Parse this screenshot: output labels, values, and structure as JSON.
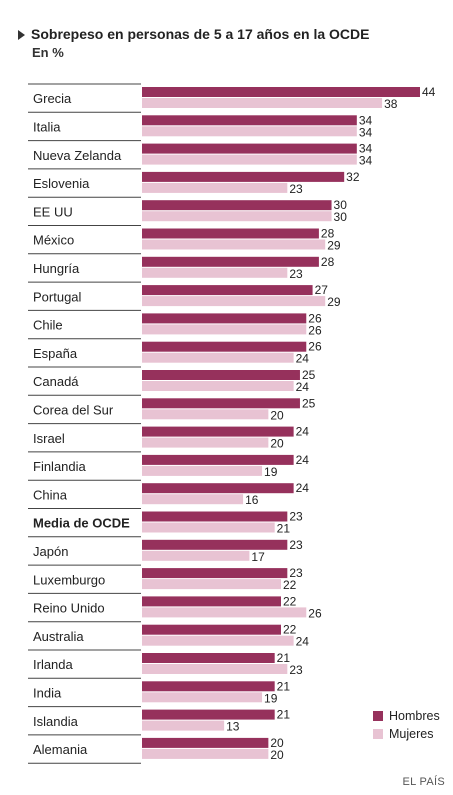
{
  "header": {
    "title": "Sobrepeso en personas de 5 a 17 años en la OCDE",
    "subtitle": "En %"
  },
  "source": "EL PAÍS",
  "colors": {
    "hombres": "#96315c",
    "mujeres": "#e8c3d3",
    "divider": "#444444"
  },
  "chart_data": {
    "type": "bar",
    "orientation": "horizontal",
    "title": "Sobrepeso en personas de 5 a 17 años en la OCDE",
    "subtitle": "En %",
    "categories": [
      "Grecia",
      "Italia",
      "Nueva Zelanda",
      "Eslovenia",
      "EE UU",
      "México",
      "Hungría",
      "Portugal",
      "Chile",
      "España",
      "Canadá",
      "Corea del Sur",
      "Israel",
      "Finlandia",
      "China",
      "Media de OCDE",
      "Japón",
      "Luxemburgo",
      "Reino Unido",
      "Australia",
      "Irlanda",
      "India",
      "Islandia",
      "Alemania"
    ],
    "highlight_category": "Media de OCDE",
    "series": [
      {
        "name": "Hombres",
        "color": "#96315c",
        "values": [
          44,
          34,
          34,
          32,
          30,
          28,
          28,
          27,
          26,
          26,
          25,
          25,
          24,
          24,
          24,
          23,
          23,
          23,
          22,
          22,
          21,
          21,
          21,
          20
        ]
      },
      {
        "name": "Mujeres",
        "color": "#e8c3d3",
        "values": [
          38,
          34,
          34,
          23,
          30,
          29,
          23,
          29,
          26,
          24,
          24,
          20,
          20,
          19,
          16,
          21,
          17,
          22,
          26,
          24,
          23,
          19,
          13,
          20
        ]
      }
    ],
    "xlim": [
      0,
      44
    ],
    "legend_position": "bottom-right",
    "grid": false
  }
}
